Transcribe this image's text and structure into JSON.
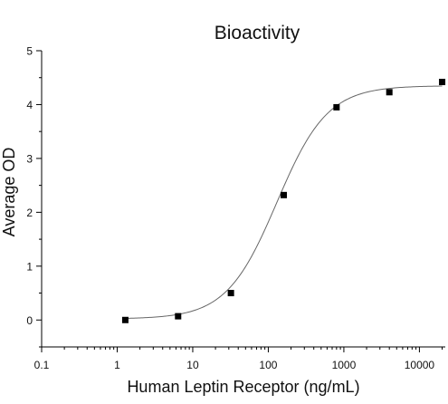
{
  "chart_data": {
    "type": "scatter",
    "title": "Bioactivity",
    "xlabel": "Human Leptin Receptor (ng/mL)",
    "ylabel": "Average OD",
    "xscale": "log",
    "xlim": [
      0.1,
      22000
    ],
    "ylim": [
      -0.5,
      5
    ],
    "xticks": [
      0.1,
      1,
      10,
      100,
      1000,
      10000
    ],
    "xtick_labels": [
      "0.1",
      "1",
      "10",
      "100",
      "1000",
      "10000"
    ],
    "yticks": [
      0,
      1,
      2,
      3,
      4,
      5
    ],
    "ytick_labels": [
      "0",
      "1",
      "2",
      "3",
      "4",
      "5"
    ],
    "grid": false,
    "legend": "none",
    "series": [
      {
        "marker": "square",
        "x": [
          1.28,
          6.4,
          32,
          160,
          800,
          4000,
          20000
        ],
        "y": [
          0.0,
          0.07,
          0.5,
          2.32,
          3.95,
          4.23,
          4.42
        ]
      }
    ],
    "fit_curve": {
      "model": "4PL",
      "bottom": 0.02,
      "top": 4.35,
      "ec50": 130,
      "hill": 1.3,
      "x_range": [
        1.28,
        20000
      ]
    },
    "colors": {
      "marker": "#000000",
      "curve": "#666666",
      "axis": "#000000"
    }
  }
}
